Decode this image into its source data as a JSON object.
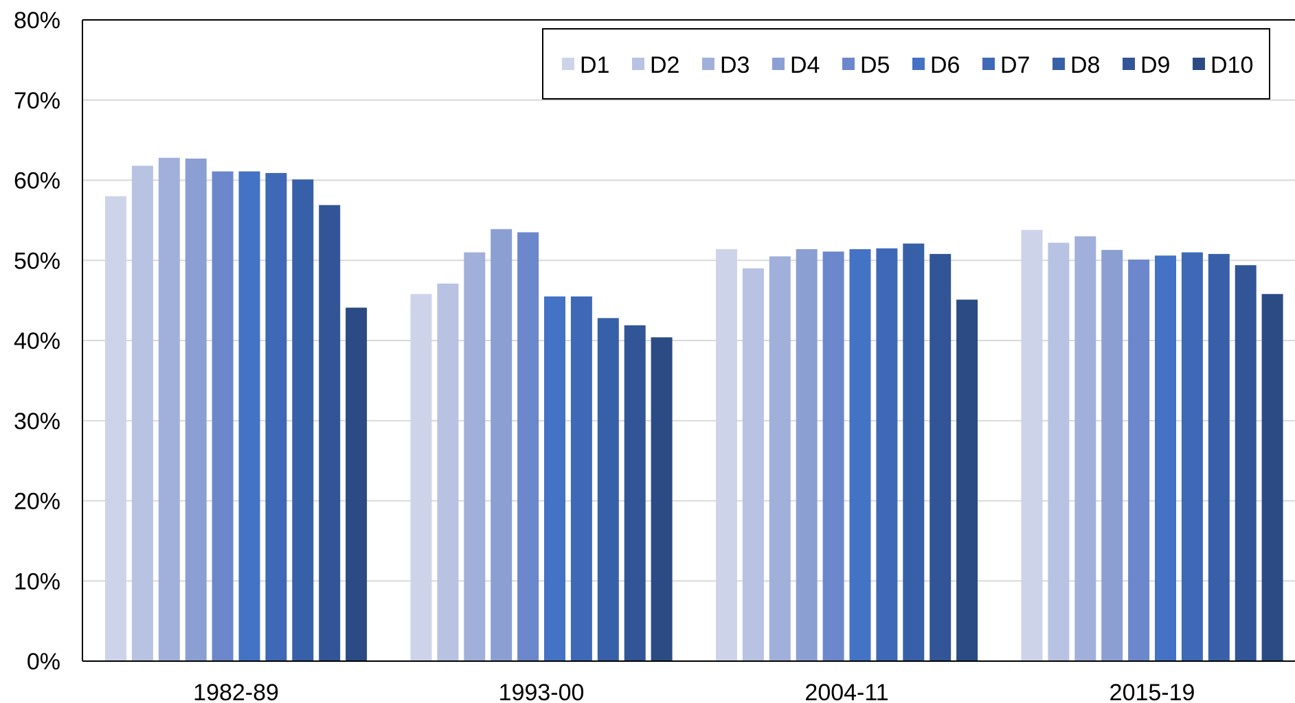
{
  "chart_data": {
    "type": "bar",
    "title": "",
    "xlabel": "",
    "ylabel": "",
    "categories": [
      "1982-89",
      "1993-00",
      "2004-11",
      "2015-19"
    ],
    "y_ticks": [
      "0%",
      "10%",
      "20%",
      "30%",
      "40%",
      "50%",
      "60%",
      "70%",
      "80%"
    ],
    "ylim": [
      0,
      80
    ],
    "grid": true,
    "legend_position": "top-right",
    "series": [
      {
        "name": "D1",
        "color": "#cdd4ea",
        "values": [
          58.0,
          45.8,
          51.4,
          53.8
        ]
      },
      {
        "name": "D2",
        "color": "#b8c2e2",
        "values": [
          61.8,
          47.1,
          49.0,
          52.2
        ]
      },
      {
        "name": "D3",
        "color": "#a1b0da",
        "values": [
          62.8,
          51.0,
          50.5,
          53.0
        ]
      },
      {
        "name": "D4",
        "color": "#8b9fd3",
        "values": [
          62.7,
          53.9,
          51.4,
          51.3
        ]
      },
      {
        "name": "D5",
        "color": "#6c87cc",
        "values": [
          61.1,
          53.5,
          51.1,
          50.1
        ]
      },
      {
        "name": "D6",
        "color": "#4472c4",
        "values": [
          61.1,
          45.5,
          51.4,
          50.6
        ]
      },
      {
        "name": "D7",
        "color": "#3f69b7",
        "values": [
          60.9,
          45.5,
          51.5,
          51.0
        ]
      },
      {
        "name": "D8",
        "color": "#3860a8",
        "values": [
          60.1,
          42.8,
          52.1,
          50.8
        ]
      },
      {
        "name": "D9",
        "color": "#325597",
        "values": [
          56.9,
          41.9,
          50.8,
          49.4
        ]
      },
      {
        "name": "D10",
        "color": "#2c4b84",
        "values": [
          44.1,
          40.4,
          45.1,
          45.8
        ]
      }
    ]
  }
}
